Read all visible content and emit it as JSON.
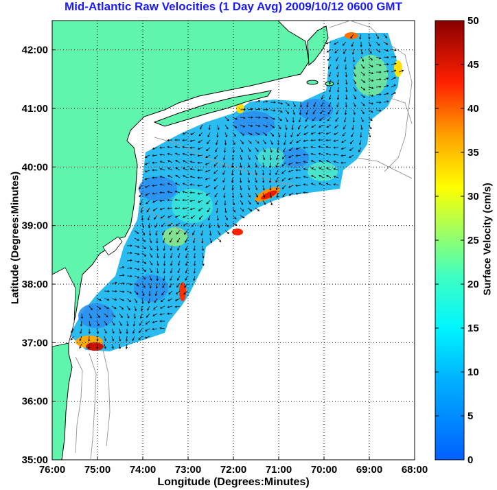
{
  "title": "Mid-Atlantic Raw Velocities (1 Day Avg) 2009/10/12 0600 GMT",
  "xlabel": "Longitude (Degrees:Minutes)",
  "ylabel": "Latitude (Degrees:Minutes)",
  "colorbar_label": "Surface Velocity (cm/s)",
  "colors": {
    "land": "#5ff5ac",
    "title": "#1a1aff",
    "grid": "#000000",
    "bathymetry": "#9a9a9a"
  },
  "chart_data": {
    "type": "heatmap",
    "title": "Mid-Atlantic Raw Velocities (1 Day Avg) 2009/10/12 0600 GMT",
    "xlabel": "Longitude (Degrees:Minutes)",
    "ylabel": "Latitude (Degrees:Minutes)",
    "xlim": [
      -76,
      -68
    ],
    "ylim": [
      35,
      42.5
    ],
    "xticks": [
      {
        "value": -76,
        "label": "76:00"
      },
      {
        "value": -75,
        "label": "75:00"
      },
      {
        "value": -74,
        "label": "74:00"
      },
      {
        "value": -73,
        "label": "73:00"
      },
      {
        "value": -72,
        "label": "72:00"
      },
      {
        "value": -71,
        "label": "71:00"
      },
      {
        "value": -70,
        "label": "70:00"
      },
      {
        "value": -69,
        "label": "69:00"
      },
      {
        "value": -68,
        "label": "68:00"
      }
    ],
    "yticks": [
      {
        "value": 35,
        "label": "35:00"
      },
      {
        "value": 36,
        "label": "36:00"
      },
      {
        "value": 37,
        "label": "37:00"
      },
      {
        "value": 38,
        "label": "38:00"
      },
      {
        "value": 39,
        "label": "39:00"
      },
      {
        "value": 40,
        "label": "40:00"
      },
      {
        "value": 41,
        "label": "41:00"
      },
      {
        "value": 42,
        "label": "42:00"
      }
    ],
    "grid": true,
    "colorbar": {
      "label": "Surface Velocity (cm/s)",
      "range": [
        0,
        50
      ],
      "ticks": [
        0,
        5,
        10,
        15,
        20,
        25,
        30,
        35,
        40,
        45,
        50
      ],
      "colormap": "jet"
    },
    "high_speed_areas": [
      {
        "lon": -75.1,
        "lat": 37.0,
        "speed": 45
      },
      {
        "lon": -71.4,
        "lat": 39.6,
        "speed": 40
      },
      {
        "lon": -72.9,
        "lat": 37.9,
        "speed": 38
      },
      {
        "lon": -71.9,
        "lat": 38.9,
        "speed": 40
      },
      {
        "lon": -69.2,
        "lat": 42.2,
        "speed": 38
      }
    ]
  }
}
